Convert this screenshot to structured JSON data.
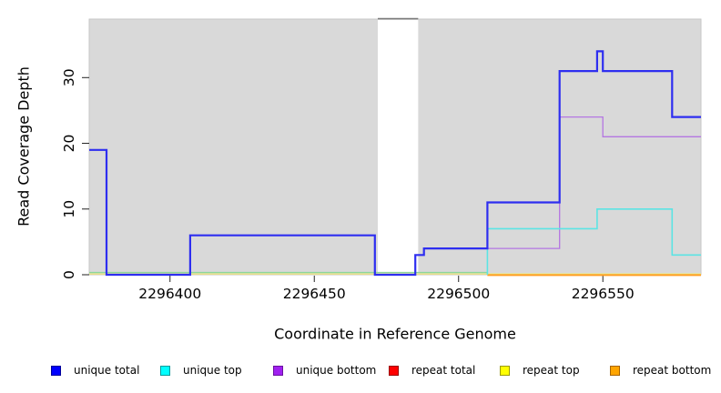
{
  "chart_data": {
    "type": "line",
    "subtype": "step",
    "title": "",
    "xlabel": "Coordinate in Reference Genome",
    "ylabel": "Read Coverage Depth",
    "xlim": [
      2296372,
      2296584
    ],
    "ylim": [
      0,
      38.9
    ],
    "x_ticks": [
      "2296400",
      "2296450",
      "2296500",
      "2296550"
    ],
    "x_tick_values": [
      2296400,
      2296450,
      2296500,
      2296550
    ],
    "y_ticks": [
      "0",
      "10",
      "20",
      "30"
    ],
    "y_tick_values": [
      0,
      10,
      20,
      30
    ],
    "grid": false,
    "figure_bg": "#ffffff",
    "plot_bg": "#d9d9d9",
    "plot_border": "#c6c6c6",
    "legend_position": "bottom",
    "masked_region": {
      "x_start": 2296472,
      "x_end": 2296486,
      "fill": "#ffffff",
      "top_border": "#7a7a7a"
    },
    "series": [
      {
        "name": "unique total",
        "line_color": "#2e2ef0",
        "legend_fill": "#0000ff",
        "legend_border": "#00009a",
        "line_width": 2.2,
        "z": 7,
        "dy": 0,
        "x_end": 2296584,
        "steps": [
          [
            2296372,
            19
          ],
          [
            2296378,
            0
          ],
          [
            2296407,
            6
          ],
          [
            2296471,
            0
          ],
          [
            2296485,
            3
          ],
          [
            2296488,
            4
          ],
          [
            2296510,
            11
          ],
          [
            2296535,
            31
          ],
          [
            2296548,
            34
          ],
          [
            2296550,
            31
          ],
          [
            2296574,
            24
          ]
        ]
      },
      {
        "name": "unique top",
        "line_color": "#5ce4e4",
        "legend_fill": "#00ffff",
        "legend_border": "#009a9a",
        "line_width": 1.6,
        "z": 6,
        "dy": 0,
        "x_end": 2296584,
        "steps": [
          [
            2296510,
            0
          ],
          [
            2296510,
            7
          ],
          [
            2296548,
            10
          ],
          [
            2296574,
            3
          ]
        ]
      },
      {
        "name": "unique bottom",
        "line_color": "#b476e2",
        "legend_fill": "#a020f0",
        "legend_border": "#6a11a0",
        "line_width": 1.3,
        "z": 5,
        "dy": 0,
        "x_end": 2296584,
        "steps": [
          [
            2296510,
            4
          ],
          [
            2296535,
            24
          ],
          [
            2296550,
            21
          ]
        ]
      },
      {
        "name": "repeat total",
        "line_color": "#dd2222",
        "legend_fill": "#ff0000",
        "legend_border": "#9a0000",
        "line_width": 1.2,
        "z": 1,
        "dy": -0.8,
        "x_end": 2296584,
        "steps": [
          [
            2296372,
            0
          ]
        ]
      },
      {
        "name": "repeat top",
        "line_color": "#ecec8e",
        "legend_fill": "#ffff00",
        "legend_border": "#9a9a00",
        "line_width": 1.5,
        "z": 2,
        "dy": -0.9,
        "x_end": 2296584,
        "steps": [
          [
            2296372,
            0
          ]
        ]
      },
      {
        "name": "repeat bottom",
        "line_color": "#ff9d20",
        "legend_fill": "#ffa500",
        "legend_border": "#a86400",
        "line_width": 2,
        "z": 4,
        "dy": 0.4,
        "x_end": 2296584,
        "steps": [
          [
            2296510,
            0
          ]
        ]
      }
    ],
    "baseline_overlap_segment": {
      "color": "#8cd69c",
      "value": 0,
      "x_start": 2296372,
      "x_end": 2296510,
      "z": 3,
      "dy": -2.4,
      "line_width": 1.4
    }
  }
}
